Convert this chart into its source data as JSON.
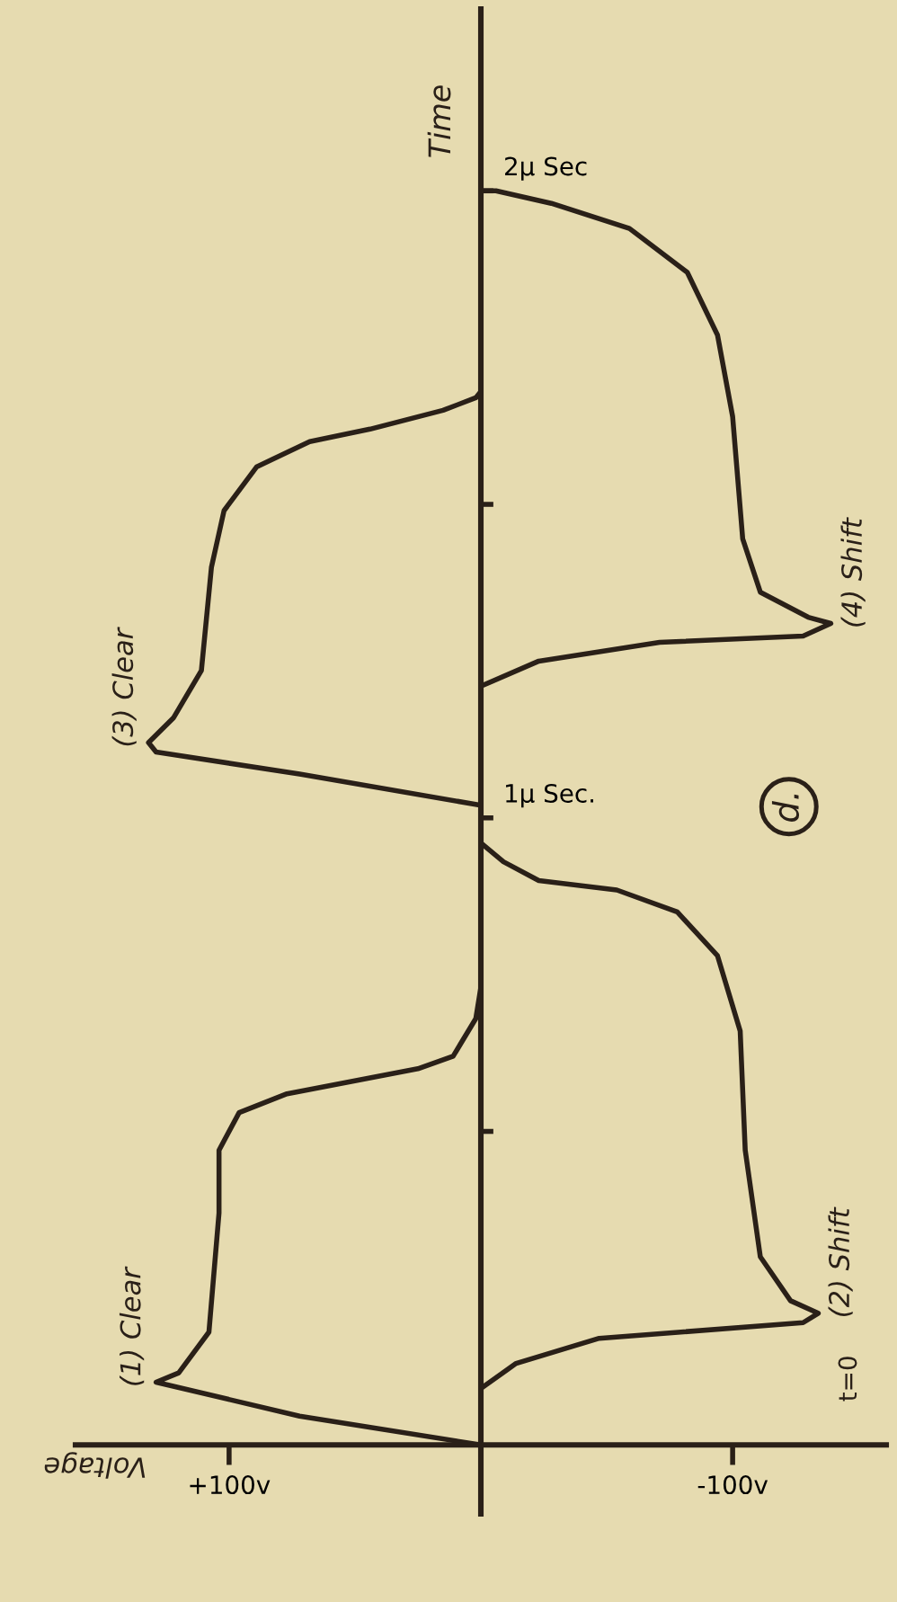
{
  "chart_data": {
    "type": "line",
    "xlabel": "Voltage",
    "ylabel": "Time",
    "xlim": [
      161,
      -161
    ],
    "ylim": [
      -0.11,
      2.29
    ],
    "xticks": [
      {
        "value": 100,
        "label": "+100v"
      },
      {
        "value": -100,
        "label": "-100v"
      }
    ],
    "yticks": [
      {
        "value": 0.5,
        "label": null
      },
      {
        "value": 1,
        "label": "1μ Sec."
      },
      {
        "value": 1.5,
        "label": null
      },
      {
        "value": 2,
        "label": "2μ Sec"
      }
    ],
    "grid": false,
    "line_style": "solid",
    "marker": "none",
    "series": [
      {
        "color": "#2a2018",
        "x": [
          0,
          72,
          129,
          120,
          108,
          104,
          104,
          96,
          77,
          25,
          11,
          2,
          0,
          0,
          72,
          129,
          132,
          122,
          111,
          107,
          102,
          89,
          68,
          44,
          15,
          2,
          0
        ],
        "values": [
          0,
          0.046,
          0.1,
          0.115,
          0.18,
          0.37,
          0.47,
          0.53,
          0.56,
          0.6,
          0.62,
          0.68,
          0.73,
          1.02,
          1.07,
          1.105,
          1.12,
          1.16,
          1.235,
          1.4,
          1.49,
          1.56,
          1.6,
          1.62,
          1.65,
          1.67,
          1.68
        ]
      },
      {
        "color": "#2a2018",
        "x": [
          0,
          -14,
          -47,
          -128,
          -134,
          -123,
          -111,
          -105,
          -103,
          -94,
          -78,
          -54,
          -23,
          -9,
          0,
          0,
          -23,
          -71,
          -128,
          -139,
          -130,
          -111,
          -104,
          -100,
          -94,
          -82,
          -59,
          -28,
          -6,
          0
        ],
        "values": [
          0.09,
          0.13,
          0.17,
          0.195,
          0.21,
          0.23,
          0.3,
          0.47,
          0.66,
          0.78,
          0.85,
          0.885,
          0.9,
          0.93,
          0.96,
          1.21,
          1.25,
          1.28,
          1.29,
          1.31,
          1.32,
          1.36,
          1.445,
          1.64,
          1.77,
          1.87,
          1.94,
          1.98,
          2.0,
          2.0
        ]
      }
    ],
    "annotations": [
      {
        "text": "(1) Clear",
        "x": 129,
        "y": 0.1
      },
      {
        "text": "(2) Shift",
        "x": -134,
        "y": 0.21
      },
      {
        "text": "(3) Clear",
        "x": 132,
        "y": 1.12
      },
      {
        "text": "(4) Shift",
        "x": -139,
        "y": 1.31
      },
      "t=0",
      "d."
    ]
  }
}
